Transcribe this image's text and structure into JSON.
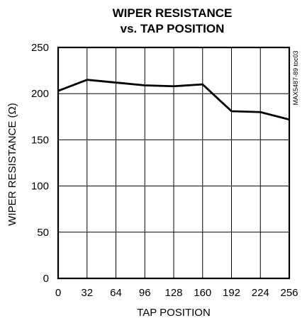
{
  "chart_data": {
    "type": "line",
    "title": [
      "WIPER RESISTANCE",
      "vs. TAP POSITION"
    ],
    "xlabel": "TAP POSITION",
    "ylabel": "WIPER RESISTANCE (Ω)",
    "side_code": "MAX5487-89 toc03",
    "xlim": [
      0,
      256
    ],
    "ylim": [
      0,
      250
    ],
    "xticks": [
      0,
      32,
      64,
      96,
      128,
      160,
      192,
      224,
      256
    ],
    "yticks": [
      0,
      50,
      100,
      150,
      200,
      250
    ],
    "grid": true,
    "series": [
      {
        "x": [
          0,
          32,
          64,
          96,
          128,
          160,
          192,
          224,
          256
        ],
        "y": [
          203,
          215,
          212,
          209,
          208,
          210,
          181,
          180,
          172
        ]
      }
    ]
  }
}
